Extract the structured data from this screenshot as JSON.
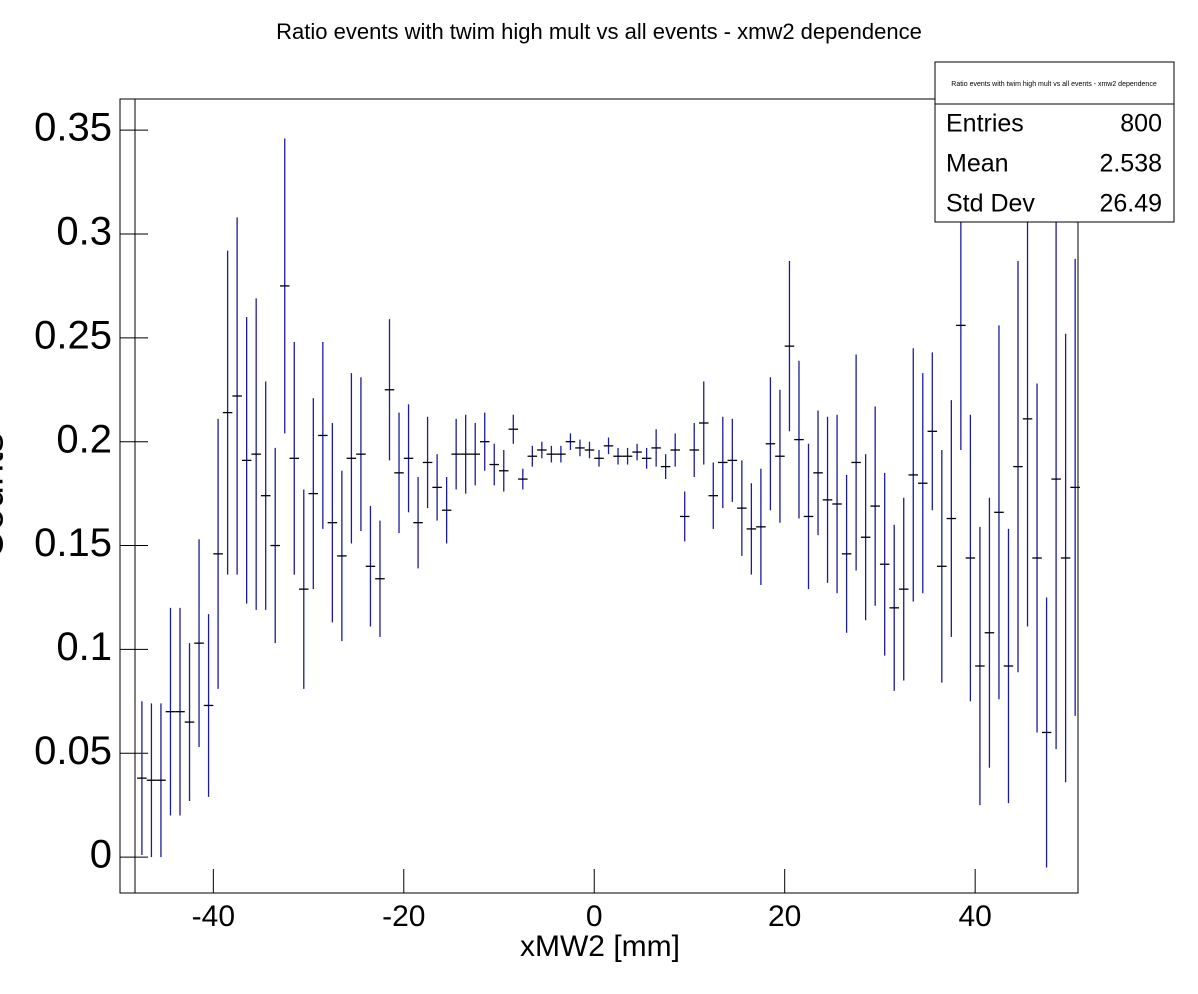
{
  "chart_data": {
    "type": "errorbar",
    "title": "Ratio events with twim high mult vs all events - xmw2 dependence",
    "x_label": "xMW2 [mm]",
    "y_label": "Counts",
    "color": "#1c1c9a",
    "xlim": [
      -49.8,
      50.8
    ],
    "ylim": [
      -0.0173,
      0.365
    ],
    "xticks": [
      -40,
      -20,
      0,
      20,
      40
    ],
    "yticks": [
      0,
      0.05,
      0.1,
      0.15,
      0.2,
      0.25,
      0.3,
      0.35
    ],
    "x": [
      -47.5,
      -46.5,
      -45.5,
      -44.5,
      -43.5,
      -42.5,
      -41.5,
      -40.5,
      -39.5,
      -38.5,
      -37.5,
      -36.5,
      -35.5,
      -34.5,
      -33.5,
      -32.5,
      -31.5,
      -30.5,
      -29.5,
      -28.5,
      -27.5,
      -26.5,
      -25.5,
      -24.5,
      -23.5,
      -22.5,
      -21.5,
      -20.5,
      -19.5,
      -18.5,
      -17.5,
      -16.5,
      -15.5,
      -14.5,
      -13.5,
      -12.5,
      -11.5,
      -10.5,
      -9.5,
      -8.5,
      -7.5,
      -6.5,
      -5.5,
      -4.5,
      -3.5,
      -2.5,
      -1.5,
      -0.5,
      0.5,
      1.5,
      2.5,
      3.5,
      4.5,
      5.5,
      6.5,
      7.5,
      8.5,
      9.5,
      10.5,
      11.5,
      12.5,
      13.5,
      14.5,
      15.5,
      16.5,
      17.5,
      18.5,
      19.5,
      20.5,
      21.5,
      22.5,
      23.5,
      24.5,
      25.5,
      26.5,
      27.5,
      28.5,
      29.5,
      30.5,
      31.5,
      32.5,
      33.5,
      34.5,
      35.5,
      36.5,
      37.5,
      38.5,
      39.5,
      40.5,
      41.5,
      42.5,
      43.5,
      44.5,
      45.5,
      46.5,
      47.5,
      48.5,
      49.5,
      50.5
    ],
    "values": [
      0.038,
      0.037,
      0.037,
      0.07,
      0.07,
      0.065,
      0.103,
      0.073,
      0.146,
      0.214,
      0.222,
      0.191,
      0.194,
      0.174,
      0.15,
      0.275,
      0.192,
      0.129,
      0.175,
      0.203,
      0.161,
      0.145,
      0.192,
      0.194,
      0.14,
      0.134,
      0.225,
      0.185,
      0.192,
      0.161,
      0.19,
      0.178,
      0.167,
      0.194,
      0.194,
      0.194,
      0.2,
      0.189,
      0.186,
      0.206,
      0.182,
      0.193,
      0.196,
      0.194,
      0.194,
      0.2,
      0.197,
      0.196,
      0.192,
      0.198,
      0.193,
      0.193,
      0.195,
      0.192,
      0.197,
      0.188,
      0.196,
      0.164,
      0.196,
      0.209,
      0.174,
      0.19,
      0.191,
      0.168,
      0.158,
      0.159,
      0.199,
      0.193,
      0.246,
      0.201,
      0.164,
      0.185,
      0.172,
      0.17,
      0.146,
      0.19,
      0.154,
      0.169,
      0.141,
      0.12,
      0.129,
      0.184,
      0.18,
      0.205,
      0.14,
      0.163,
      0.256,
      0.144,
      0.092,
      0.108,
      0.166,
      0.092,
      0.188,
      0.211,
      0.144,
      0.06,
      0.182,
      0.144,
      0.178
    ],
    "errors": [
      0.037,
      0.037,
      0.037,
      0.05,
      0.05,
      0.038,
      0.05,
      0.044,
      0.065,
      0.078,
      0.086,
      0.069,
      0.075,
      0.055,
      0.047,
      0.071,
      0.056,
      0.048,
      0.046,
      0.045,
      0.048,
      0.041,
      0.041,
      0.037,
      0.029,
      0.028,
      0.034,
      0.029,
      0.026,
      0.022,
      0.022,
      0.016,
      0.016,
      0.017,
      0.019,
      0.015,
      0.014,
      0.01,
      0.01,
      0.007,
      0.005,
      0.005,
      0.004,
      0.004,
      0.004,
      0.004,
      0.004,
      0.004,
      0.004,
      0.004,
      0.004,
      0.004,
      0.004,
      0.005,
      0.009,
      0.006,
      0.008,
      0.012,
      0.013,
      0.02,
      0.016,
      0.022,
      0.02,
      0.023,
      0.022,
      0.028,
      0.032,
      0.032,
      0.041,
      0.038,
      0.035,
      0.03,
      0.04,
      0.043,
      0.038,
      0.052,
      0.04,
      0.048,
      0.044,
      0.04,
      0.044,
      0.061,
      0.053,
      0.038,
      0.056,
      0.057,
      0.06,
      0.069,
      0.067,
      0.065,
      0.09,
      0.066,
      0.099,
      0.1,
      0.084,
      0.065,
      0.13,
      0.108,
      0.11
    ],
    "stats": {
      "title": "Ratio events with twim high mult vs all events - xmw2 dependence",
      "rows": [
        [
          "Entries",
          "800"
        ],
        [
          "Mean",
          "2.538"
        ],
        [
          "Std Dev",
          "26.49"
        ]
      ]
    }
  }
}
